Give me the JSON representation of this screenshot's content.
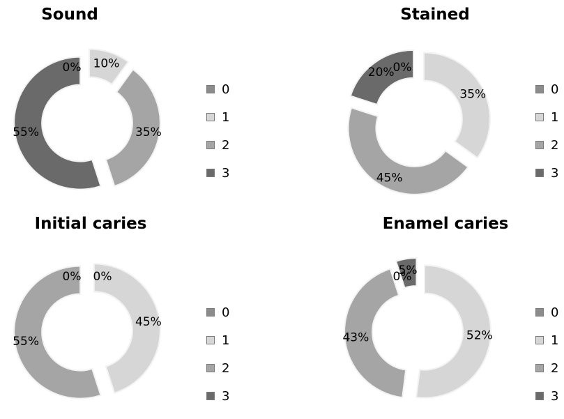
{
  "legend_colors": {
    "0": "#8c8c8c",
    "1": "#d6d6d6",
    "2": "#a5a5a5",
    "3": "#6a6a6a"
  },
  "chart_data": [
    {
      "type": "pie",
      "title": "Sound",
      "categories": [
        "0",
        "1",
        "2",
        "3"
      ],
      "values": [
        0,
        10,
        35,
        55
      ],
      "labels": [
        "0%",
        "10%",
        "35%",
        "55%"
      ],
      "legend_position": "right"
    },
    {
      "type": "pie",
      "title": "Stained",
      "categories": [
        "0",
        "1",
        "2",
        "3"
      ],
      "values": [
        0,
        35,
        45,
        20
      ],
      "labels": [
        "0%",
        "35%",
        "45%",
        "20%"
      ],
      "legend_position": "right"
    },
    {
      "type": "pie",
      "title": "Initial caries",
      "categories": [
        "0",
        "1",
        "2",
        "3"
      ],
      "values": [
        0,
        45,
        55,
        0
      ],
      "labels": [
        "0%",
        "45%",
        "55%",
        "0%"
      ],
      "legend_position": "right"
    },
    {
      "type": "pie",
      "title": "Enamel caries",
      "categories": [
        "0",
        "1",
        "2",
        "3"
      ],
      "values": [
        0,
        52,
        43,
        5
      ],
      "labels": [
        "0%",
        "52%",
        "43%",
        "5%"
      ],
      "legend_position": "right"
    }
  ]
}
